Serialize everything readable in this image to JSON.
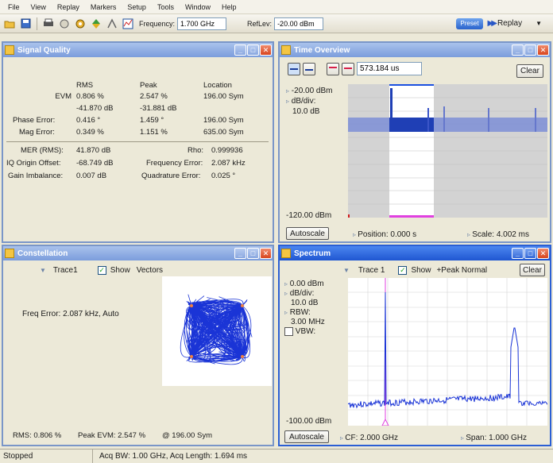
{
  "menu": [
    "File",
    "View",
    "Replay",
    "Markers",
    "Setup",
    "Tools",
    "Window",
    "Help"
  ],
  "toolbar": {
    "frequency_label": "Frequency:",
    "frequency_value": "1.700 GHz",
    "reflev_label": "RefLev:",
    "reflev_value": "-20.00 dBm",
    "preset_label": "Preset",
    "replay_label": "Replay"
  },
  "signal_quality": {
    "title": "Signal Quality",
    "headers": [
      "RMS",
      "Peak",
      "Location"
    ],
    "evm_label": "EVM",
    "evm_rms": "0.806 %",
    "evm_peak": "2.547 %",
    "evm_loc": "196.00 Sym",
    "evm_rms_db": "-41.870 dB",
    "evm_peak_db": "-31.881 dB",
    "phase_label": "Phase Error:",
    "phase_rms": "0.416 °",
    "phase_peak": "1.459 °",
    "phase_loc": "196.00 Sym",
    "mag_label": "Mag Error:",
    "mag_rms": "0.349 %",
    "mag_peak": "1.151 %",
    "mag_loc": "635.00 Sym",
    "mer_label": "MER (RMS):",
    "mer_value": "41.870 dB",
    "rho_label": "Rho:",
    "rho_value": "0.999936",
    "iq_label": "IQ Origin Offset:",
    "iq_value": "-68.749 dB",
    "ferr_label": "Frequency Error:",
    "ferr_value": "2.087 kHz",
    "gain_label": "Gain Imbalance:",
    "gain_value": "0.007 dB",
    "quad_label": "Quadrature Error:",
    "quad_value": "0.025 °"
  },
  "time_overview": {
    "title": "Time Overview",
    "time_value": "573.184 us",
    "clear_label": "Clear",
    "top_level": "-20.00 dBm",
    "dbdiv_label": "dB/div:",
    "dbdiv_value": "10.0 dB",
    "bottom_level": "-120.00 dBm",
    "autoscale_label": "Autoscale",
    "position_label": "Position: 0.000 s",
    "scale_label": "Scale: 4.002 ms"
  },
  "constellation": {
    "title": "Constellation",
    "trace_label": "Trace1",
    "show_label": "Show",
    "vectors_label": "Vectors",
    "freq_error": "Freq Error: 2.087 kHz, Auto",
    "rms_label": "RMS: 0.806 %",
    "peak_label": "Peak EVM:  2.547 %",
    "at_label": "@  196.00 Sym"
  },
  "spectrum": {
    "title": "Spectrum",
    "trace_label": "Trace 1",
    "show_label": "Show",
    "mode_label": "+Peak Normal",
    "clear_label": "Clear",
    "top_level": "0.00 dBm",
    "dbdiv_label": "dB/div:",
    "dbdiv_value": "10.0 dB",
    "rbw_label": "RBW:",
    "rbw_value": "3.00 MHz",
    "vbw_label": "VBW:",
    "bottom_level": "-100.00 dBm",
    "autoscale_label": "Autoscale",
    "cf_label": "CF: 2.000 GHz",
    "span_label": "Span: 1.000 GHz"
  },
  "status": {
    "state": "Stopped",
    "info": "Acq BW: 1.00 GHz, Acq Length: 1.694 ms"
  }
}
